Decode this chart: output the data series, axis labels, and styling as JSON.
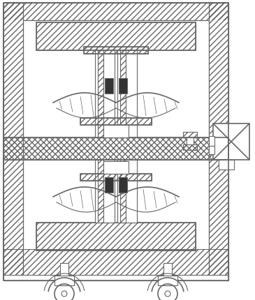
{
  "lc": "#666666",
  "lw": 0.8,
  "lw2": 1.2,
  "figsize": [
    3.65,
    4.31
  ],
  "dpi": 100
}
